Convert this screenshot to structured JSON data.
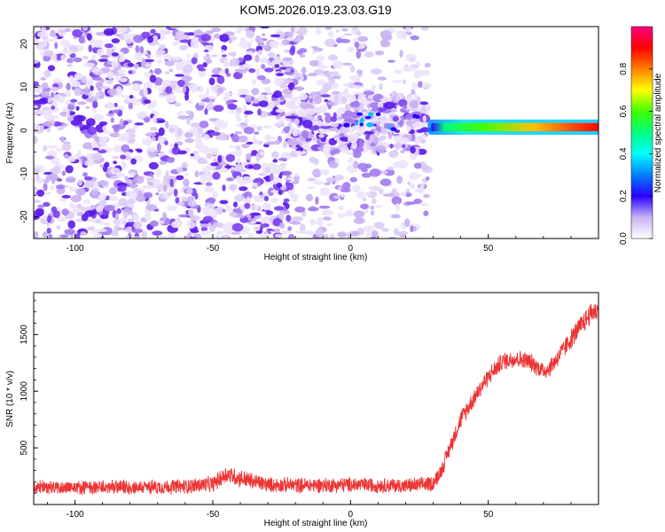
{
  "title": "KOM5.2026.019.23.03.G19",
  "colors": {
    "spectrogram_low": "#d9c8f7",
    "spectrogram_mid": "#7a2ef0",
    "snr_line": "#ee3333",
    "frame": "#000000"
  },
  "chart_data": [
    {
      "type": "heatmap",
      "title": "KOM5.2026.019.23.03.G19",
      "xlabel": "Height of straight line (km)",
      "ylabel": "Frequency (Hz)",
      "xlim": [
        -115,
        90
      ],
      "ylim": [
        -25,
        24
      ],
      "xticks": [
        -100,
        -50,
        0,
        50
      ],
      "yticks": [
        -20,
        -10,
        0,
        10,
        20
      ],
      "grid": false,
      "colorbar": {
        "label": "Normalized spectral amplitude",
        "range": [
          0.0,
          1.0
        ],
        "ticks": [
          0.0,
          0.2,
          0.4,
          0.6,
          0.8
        ],
        "tick_labels": [
          "0.0",
          "0.2",
          "0.4",
          "0.6",
          "0.8"
        ],
        "colormap": [
          "#ffffff",
          "#c9b3f5",
          "#7a2ef0",
          "#2a00ff",
          "#0080ff",
          "#00ffff",
          "#00ff80",
          "#80ff00",
          "#ffff00",
          "#ff8000",
          "#ff0000",
          "#ff0080"
        ]
      },
      "regions": [
        {
          "name": "noise",
          "x": [
            -115,
            -20
          ],
          "freq": [
            -25,
            24
          ],
          "amplitude": [
            0.0,
            0.2
          ]
        },
        {
          "name": "sparse noise",
          "x": [
            -20,
            28
          ],
          "freq": [
            -25,
            24
          ],
          "amplitude": [
            0.0,
            0.1
          ]
        },
        {
          "name": "signal onset",
          "x": [
            -22,
            28
          ],
          "freq": [
            -5,
            8
          ],
          "amplitude": [
            0.1,
            0.3
          ]
        },
        {
          "name": "carrier",
          "x": [
            28,
            90
          ],
          "freq": [
            0,
            1.5
          ],
          "amplitude": [
            0.3,
            0.95
          ]
        }
      ]
    },
    {
      "type": "line",
      "xlabel": "Height of straight line (km)",
      "ylabel": "SNR (10 * v/v)",
      "xlim": [
        -115,
        90
      ],
      "ylim": [
        0,
        1870
      ],
      "xticks": [
        -100,
        -50,
        0,
        50
      ],
      "yticks": [
        500,
        1000,
        1500
      ],
      "grid": false,
      "series": [
        {
          "color": "#ee3333",
          "x": [
            -115,
            -100,
            -80,
            -60,
            -50,
            -45,
            -40,
            -30,
            -20,
            -10,
            0,
            10,
            20,
            25,
            30,
            33,
            36,
            40,
            45,
            50,
            55,
            60,
            65,
            70,
            72,
            75,
            80,
            85,
            88,
            90
          ],
          "y": [
            150,
            150,
            150,
            160,
            180,
            270,
            230,
            175,
            170,
            170,
            175,
            170,
            165,
            170,
            190,
            300,
            500,
            750,
            950,
            1130,
            1260,
            1290,
            1260,
            1180,
            1200,
            1290,
            1460,
            1620,
            1710,
            1700
          ],
          "noise_amplitude": [
            70,
            70,
            70,
            75,
            80,
            90,
            90,
            75,
            75,
            75,
            75,
            75,
            75,
            75,
            80,
            80,
            85,
            90,
            90,
            90,
            90,
            90,
            90,
            90,
            90,
            95,
            100,
            110,
            110,
            110
          ]
        }
      ]
    }
  ]
}
